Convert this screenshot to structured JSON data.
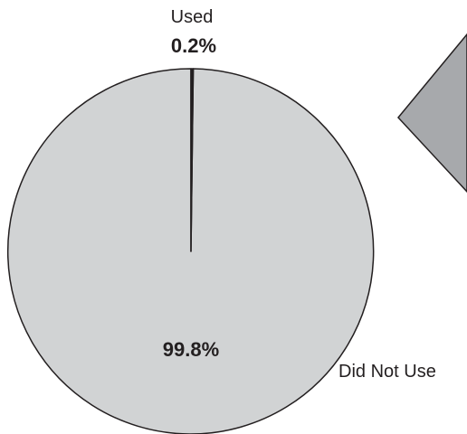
{
  "chart_data": {
    "type": "pie",
    "slices": [
      {
        "label": "Used",
        "value": 0.2,
        "value_text": "0.2%",
        "color": "#231f20"
      },
      {
        "label": "Did Not Use",
        "value": 99.8,
        "value_text": "99.8%",
        "color": "#d1d3d4"
      }
    ],
    "outline_color": "#231f20",
    "partial_shape_color": "#a7a9ac"
  }
}
